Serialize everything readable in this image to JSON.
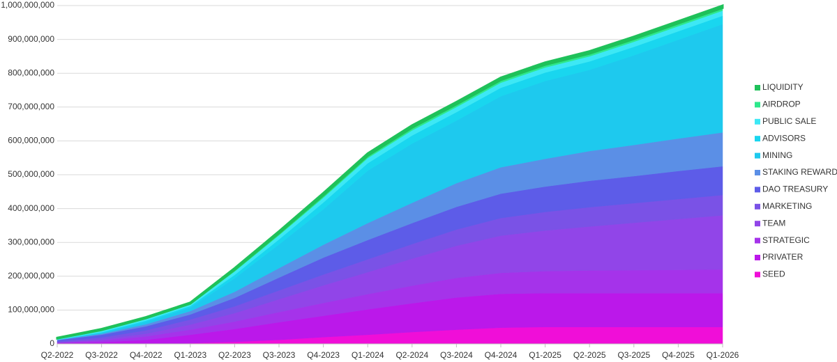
{
  "chart_data": {
    "type": "stacked-area",
    "categories": [
      "Q2-2022",
      "Q3-2022",
      "Q4-2022",
      "Q1-2023",
      "Q2-2023",
      "Q3-2023",
      "Q4-2023",
      "Q1-2024",
      "Q2-2024",
      "Q3-2024",
      "Q4-2024",
      "Q1-2025",
      "Q2-2025",
      "Q3-2025",
      "Q4-2025",
      "Q1-2026"
    ],
    "ylim": [
      0,
      1000000000
    ],
    "yticks": [
      0,
      {
        "value": 100000000,
        "label": "100,000,000"
      },
      {
        "value": 200000000,
        "label": "200,000,000"
      },
      {
        "value": 300000000,
        "label": "300,000,000"
      },
      {
        "value": 400000000,
        "label": "400,000,000"
      },
      {
        "value": 500000000,
        "label": "500,000,000"
      },
      {
        "value": 600000000,
        "label": "600,000,000"
      },
      {
        "value": 700000000,
        "label": "700,000,000"
      },
      {
        "value": 800000000,
        "label": "800,000,000"
      },
      {
        "value": 900000000,
        "label": "900,000,000"
      },
      {
        "value": 1000000000,
        "label": "1,000,000,000"
      }
    ],
    "grid": true,
    "legend": "right",
    "series": [
      {
        "name": "SEED",
        "color": "#f00ed8",
        "values": [
          0,
          0,
          0,
          2000000,
          6000000,
          12000000,
          20000000,
          27000000,
          35000000,
          42000000,
          48000000,
          50000000,
          50000000,
          50000000,
          50000000,
          50000000
        ]
      },
      {
        "name": "PRIVATER",
        "color": "#bb18ea",
        "values": [
          2000000,
          5000000,
          12000000,
          25000000,
          38000000,
          52000000,
          63000000,
          75000000,
          85000000,
          95000000,
          100000000,
          100000000,
          100000000,
          100000000,
          100000000,
          100000000
        ]
      },
      {
        "name": "STRATEGIC",
        "color": "#a533ea",
        "values": [
          2000000,
          5000000,
          10000000,
          15000000,
          22000000,
          30000000,
          38000000,
          45000000,
          52000000,
          58000000,
          62000000,
          65000000,
          67000000,
          68000000,
          69000000,
          70000000
        ]
      },
      {
        "name": "TEAM",
        "color": "#9145e8",
        "values": [
          0,
          3000000,
          8000000,
          15000000,
          25000000,
          38000000,
          52000000,
          65000000,
          80000000,
          95000000,
          110000000,
          120000000,
          130000000,
          140000000,
          150000000,
          160000000
        ]
      },
      {
        "name": "MARKETING",
        "color": "#7a52e6",
        "values": [
          3000000,
          6000000,
          10000000,
          15000000,
          20000000,
          26000000,
          32000000,
          38000000,
          43000000,
          48000000,
          52000000,
          55000000,
          57000000,
          58000000,
          59000000,
          60000000
        ]
      },
      {
        "name": "DAO TREASURY",
        "color": "#5d5ce8",
        "values": [
          4000000,
          8000000,
          12000000,
          15000000,
          25000000,
          38000000,
          50000000,
          57000000,
          62000000,
          67000000,
          72000000,
          75000000,
          78000000,
          80000000,
          83000000,
          85000000
        ]
      },
      {
        "name": "STAKING REWARDS",
        "color": "#5b8fe6",
        "values": [
          1000000,
          3000000,
          6000000,
          10000000,
          18000000,
          28000000,
          38000000,
          50000000,
          60000000,
          70000000,
          78000000,
          82000000,
          88000000,
          92000000,
          96000000,
          100000000
        ]
      },
      {
        "name": "MINING",
        "color": "#1ec9ee",
        "values": [
          0,
          3000000,
          7000000,
          10000000,
          40000000,
          70000000,
          105000000,
          155000000,
          175000000,
          185000000,
          210000000,
          230000000,
          240000000,
          265000000,
          292000000,
          320000000
        ]
      },
      {
        "name": "ADVISORS",
        "color": "#19d6ef",
        "values": [
          0,
          2000000,
          4000000,
          5000000,
          10000000,
          15000000,
          20000000,
          22000000,
          24000000,
          25000000,
          25000000,
          25000000,
          25000000,
          25000000,
          25000000,
          25000000
        ]
      },
      {
        "name": "PUBLIC SALE",
        "color": "#3de8f5",
        "values": [
          2000000,
          3000000,
          4000000,
          4000000,
          10000000,
          12000000,
          14000000,
          15000000,
          15000000,
          15000000,
          15000000,
          15000000,
          15000000,
          15000000,
          15000000,
          15000000
        ]
      },
      {
        "name": "AIRDROP",
        "color": "#2ee88c",
        "values": [
          2000000,
          3000000,
          3000000,
          3000000,
          5000000,
          6000000,
          7000000,
          7000000,
          8000000,
          8000000,
          8000000,
          8000000,
          8000000,
          8000000,
          8000000,
          8000000
        ]
      },
      {
        "name": "LIQUIDITY",
        "color": "#1fc15a",
        "values": [
          2000000,
          3000000,
          3000000,
          3000000,
          5000000,
          6000000,
          7000000,
          7000000,
          7000000,
          7000000,
          7000000,
          7000000,
          7000000,
          7000000,
          7000000,
          7000000
        ]
      }
    ]
  }
}
